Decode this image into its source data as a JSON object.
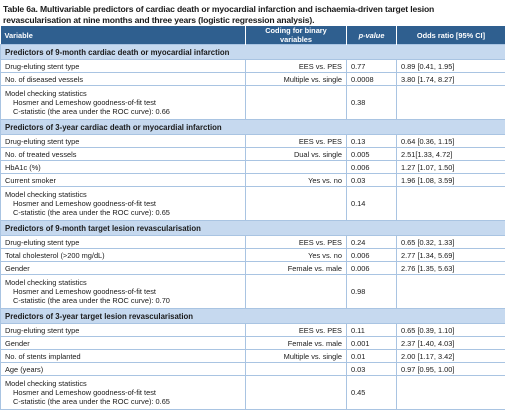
{
  "caption": "Table 6a. Multivariable predictors of cardiac death or myocardial infarction and ischaemia-driven target lesion revascularisation at nine months and three years (logistic regression analysis).",
  "header": [
    "Variable",
    "Coding for binary variables",
    "p-value",
    "Odds ratio [95% CI]"
  ],
  "sections": [
    {
      "title": "Predictors of 9-month cardiac death or myocardial infarction",
      "rows": [
        [
          "Drug-eluting stent type",
          "EES vs. PES",
          "0.77",
          "0.89 [0.41, 1.95]"
        ],
        [
          "No. of diseased vessels",
          "Multiple vs. single",
          "0.0008",
          "3.80 [1.74, 8.27]"
        ],
        [
          [
            "Model checking statistics",
            "Hosmer and Lemeshow goodness-of-fit test",
            "C-statistic (the area under the ROC curve): 0.66"
          ],
          null,
          "0.38",
          null
        ]
      ]
    },
    {
      "title": "Predictors of 3-year cardiac death or myocardial infarction",
      "rows": [
        [
          "Drug-eluting stent type",
          "EES vs. PES",
          "0.13",
          "0.64 [0.36, 1.15]"
        ],
        [
          "No. of treated vessels",
          "Dual vs. single",
          "0.005",
          "2.51[1.33, 4.72]"
        ],
        [
          "HbA1c (%)",
          null,
          "0.006",
          "1.27 [1.07, 1.50]"
        ],
        [
          "Current smoker",
          "Yes vs. no",
          "0.03",
          "1.96 [1.08, 3.59]"
        ],
        [
          [
            "Model checking statistics",
            "Hosmer and Lemeshow goodness-of-fit test",
            "C-statistic (the area under the ROC curve): 0.65"
          ],
          null,
          "0.14",
          null
        ]
      ]
    },
    {
      "title": "Predictors of 9-month target lesion revascularisation",
      "rows": [
        [
          "Drug-eluting stent type",
          "EES vs. PES",
          "0.24",
          "0.65 [0.32, 1.33]"
        ],
        [
          "Total cholesterol (>200 mg/dL)",
          "Yes vs. no",
          "0.006",
          "2.77 [1.34, 5.69]"
        ],
        [
          "Gender",
          "Female vs. male",
          "0.006",
          "2.76 [1.35, 5.63]"
        ],
        [
          [
            "Model checking statistics",
            "Hosmer and Lemeshow goodness-of-fit test",
            "C-statistic (the area under the ROC curve): 0.70"
          ],
          null,
          "0.98",
          null
        ]
      ]
    },
    {
      "title": "Predictors of 3-year target lesion revascularisation",
      "rows": [
        [
          "Drug-eluting stent type",
          "EES vs. PES",
          "0.11",
          "0.65 [0.39, 1.10]"
        ],
        [
          "Gender",
          "Female vs. male",
          "0.001",
          "2.37 [1.40, 4.03]"
        ],
        [
          "No. of stents implanted",
          "Multiple vs. single",
          "0.01",
          "2.00 [1.17, 3.42]"
        ],
        [
          "Age (years)",
          null,
          "0.03",
          "0.97 [0.95, 1.00]"
        ],
        [
          [
            "Model checking statistics",
            "Hosmer and Lemeshow goodness-of-fit test",
            "C-statistic (the area under the ROC curve): 0.65"
          ],
          null,
          "0.45",
          null
        ]
      ]
    }
  ]
}
